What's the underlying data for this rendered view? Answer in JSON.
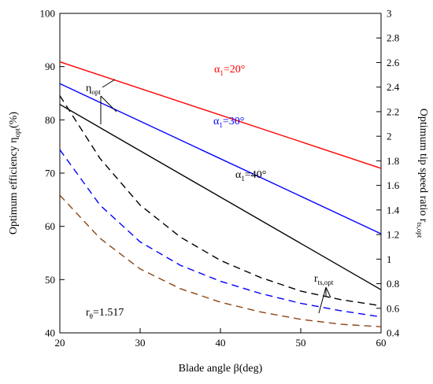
{
  "chart_data": {
    "type": "line",
    "xlabel": "Blade angle β(deg)",
    "ylabel_left": {
      "text": "Optimum efficiency η",
      "sub": "opt",
      "suffix": "(%)"
    },
    "ylabel_right": {
      "text": "Optimum tip speed ratio r",
      "sub": "ts,opt"
    },
    "xlim": [
      20,
      60
    ],
    "ylim_left": [
      40,
      100
    ],
    "ylim_right": [
      0.4,
      3.0
    ],
    "x_ticks": [
      "20",
      "30",
      "40",
      "50",
      "60"
    ],
    "y_left_ticks": [
      "40",
      "50",
      "60",
      "70",
      "80",
      "90",
      "100"
    ],
    "y_right_ticks": [
      "0.4",
      "0.6",
      "0.8",
      "1",
      "1.2",
      "1.4",
      "1.6",
      "1.8",
      "2",
      "2.2",
      "2.4",
      "2.6",
      "2.8",
      "3"
    ],
    "grid": false,
    "efficiency_series": [
      {
        "name": "α1=20°",
        "color": "#ff0000",
        "style": "solid",
        "axis": "left",
        "x": [
          20,
          60
        ],
        "y": [
          90.9,
          70.9
        ]
      },
      {
        "name": "α1=30°",
        "color": "#0000ff",
        "style": "solid",
        "axis": "left",
        "x": [
          20,
          60
        ],
        "y": [
          86.8,
          58.6
        ]
      },
      {
        "name": "α1=40°",
        "color": "#000000",
        "style": "solid",
        "axis": "left",
        "x": [
          20,
          60
        ],
        "y": [
          82.9,
          48.1
        ]
      }
    ],
    "tip_speed_series": [
      {
        "color": "#000000",
        "style": "dashed",
        "axis": "right",
        "x": [
          20,
          25,
          30,
          35,
          40,
          45,
          50,
          55,
          60
        ],
        "y": [
          2.33,
          1.82,
          1.44,
          1.18,
          0.99,
          0.85,
          0.74,
          0.67,
          0.62
        ]
      },
      {
        "color": "#0000ff",
        "style": "dashed",
        "axis": "right",
        "x": [
          20,
          25,
          30,
          35,
          40,
          45,
          50,
          55,
          60
        ],
        "y": [
          1.89,
          1.44,
          1.14,
          0.95,
          0.82,
          0.72,
          0.64,
          0.58,
          0.53
        ]
      },
      {
        "color": "#8b4513",
        "style": "dashed",
        "axis": "right",
        "x": [
          20,
          25,
          30,
          35,
          40,
          45,
          50,
          55,
          60
        ],
        "y": [
          1.52,
          1.17,
          0.92,
          0.76,
          0.65,
          0.57,
          0.51,
          0.47,
          0.45
        ]
      }
    ],
    "annotations": {
      "eta": {
        "main": "η",
        "sub": "opt"
      },
      "alpha20": {
        "pre": "α",
        "sub": "1",
        "post": "=20°",
        "color": "#ff0000"
      },
      "alpha30": {
        "pre": "α",
        "sub": "1",
        "post": "=30°",
        "color": "#0000ff"
      },
      "alpha40": {
        "pre": "α",
        "sub": "1",
        "post": "=40°",
        "color": "#000000"
      },
      "rts": {
        "main": "r",
        "sub": "ts,opt"
      },
      "rtheta": {
        "main": "r",
        "sub": "θ",
        "post": "=1.517"
      }
    }
  }
}
